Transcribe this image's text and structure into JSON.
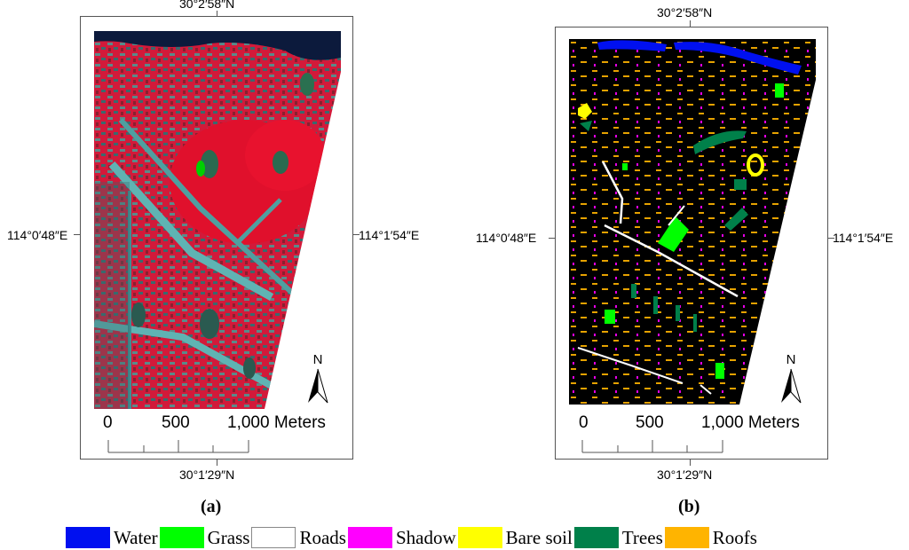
{
  "panel_a": {
    "coord_top": "30°2′58″N",
    "coord_bottom": "30°1′29″N",
    "coord_left": "114°0′48″E",
    "coord_right": "114°1′54″E",
    "scale_labels": [
      "0",
      "500",
      "1,000 Meters"
    ],
    "north": "N",
    "label": "(a)",
    "image": "false-color satellite imagery"
  },
  "panel_b": {
    "coord_top": "30°2′58″N",
    "coord_bottom": "30°1′29″N",
    "coord_left": "114°0′48″E",
    "coord_right": "114°1′54″E",
    "scale_labels": [
      "0",
      "500",
      "1,000 Meters"
    ],
    "north": "N",
    "label": "(b)",
    "image": "land-cover classification map"
  },
  "legend": [
    {
      "label": "Water",
      "color": "#0010f0"
    },
    {
      "label": "Grass",
      "color": "#00ff00"
    },
    {
      "label": "Roads",
      "color": "#ffffff"
    },
    {
      "label": "Shadow",
      "color": "#ff00ff"
    },
    {
      "label": "Bare soil",
      "color": "#ffff00"
    },
    {
      "label": "Trees",
      "color": "#00804a"
    },
    {
      "label": "Roofs",
      "color": "#ffb400"
    }
  ]
}
